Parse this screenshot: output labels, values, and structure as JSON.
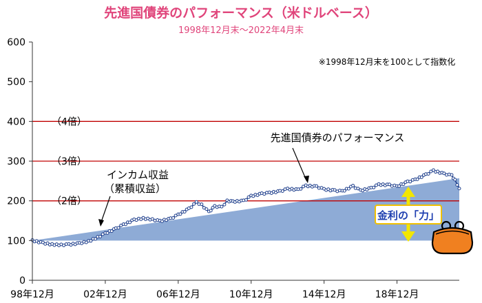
{
  "chart_data": {
    "type": "area",
    "title": "先進国債券のパフォーマンス（米ドルベース）",
    "subtitle": "1998年12月末～2022年4月末",
    "note": "※1998年12月末を100として指数化",
    "x_tick_labels": [
      "98年12月",
      "02年12月",
      "06年12月",
      "10年12月",
      "14年12月",
      "18年12月"
    ],
    "x_tick_years": [
      1998.917,
      2002.917,
      2006.917,
      2010.917,
      2014.917,
      2018.917
    ],
    "xlim": [
      1998.917,
      2022.333
    ],
    "y_ticks": [
      0,
      100,
      200,
      300,
      400,
      500,
      600
    ],
    "ylim": [
      0,
      600
    ],
    "reference_lines": [
      {
        "value": 200,
        "label": "（2倍）"
      },
      {
        "value": 300,
        "label": "（3倍）"
      },
      {
        "value": 400,
        "label": "（4倍）"
      }
    ],
    "grid": false,
    "series": [
      {
        "name": "先進国債券のパフォーマンス",
        "kind": "line",
        "color": "#1f3f8c",
        "x": [
          1998.917,
          1999.5,
          2000.0,
          2000.5,
          2000.917,
          2001.5,
          2002.0,
          2002.5,
          2002.917,
          2003.5,
          2003.917,
          2004.5,
          2005.0,
          2005.5,
          2005.917,
          2006.5,
          2006.917,
          2007.5,
          2007.917,
          2008.2,
          2008.6,
          2008.917,
          2009.3,
          2009.6,
          2009.917,
          2010.5,
          2010.917,
          2011.5,
          2011.917,
          2012.5,
          2012.917,
          2013.5,
          2013.917,
          2014.5,
          2014.917,
          2015.5,
          2015.917,
          2016.5,
          2016.917,
          2017.5,
          2017.917,
          2018.5,
          2018.917,
          2019.5,
          2019.917,
          2020.5,
          2020.917,
          2021.5,
          2021.917,
          2022.1,
          2022.333
        ],
        "values": [
          100,
          94,
          90,
          89,
          90,
          93,
          98,
          108,
          118,
          130,
          140,
          152,
          156,
          153,
          149,
          155,
          165,
          180,
          196,
          190,
          172,
          186,
          184,
          200,
          198,
          200,
          212,
          218,
          220,
          224,
          230,
          228,
          238,
          236,
          229,
          226,
          224,
          237,
          226,
          232,
          241,
          240,
          236,
          248,
          253,
          266,
          276,
          268,
          264,
          252,
          231
        ]
      },
      {
        "name": "インカム収益（累積収益）",
        "kind": "area",
        "color": "#8eabd6",
        "x": [
          1998.917,
          2022.333
        ],
        "values": [
          100,
          257
        ]
      }
    ],
    "annotations": [
      {
        "text": "インカム収益",
        "text2": "（累積収益）"
      },
      {
        "text": "先進国債券のパフォーマンス"
      },
      {
        "text": "金利の「力」"
      }
    ]
  },
  "colors": {
    "title": "#e0457b",
    "ref_line": "#c00000",
    "axis": "#333333",
    "money_label": "#1f3fb0",
    "money_border": "#f0c000",
    "arrow": "#f2e600",
    "purse": "#f08020"
  },
  "icons": {
    "purse": "coin-purse-icon"
  }
}
